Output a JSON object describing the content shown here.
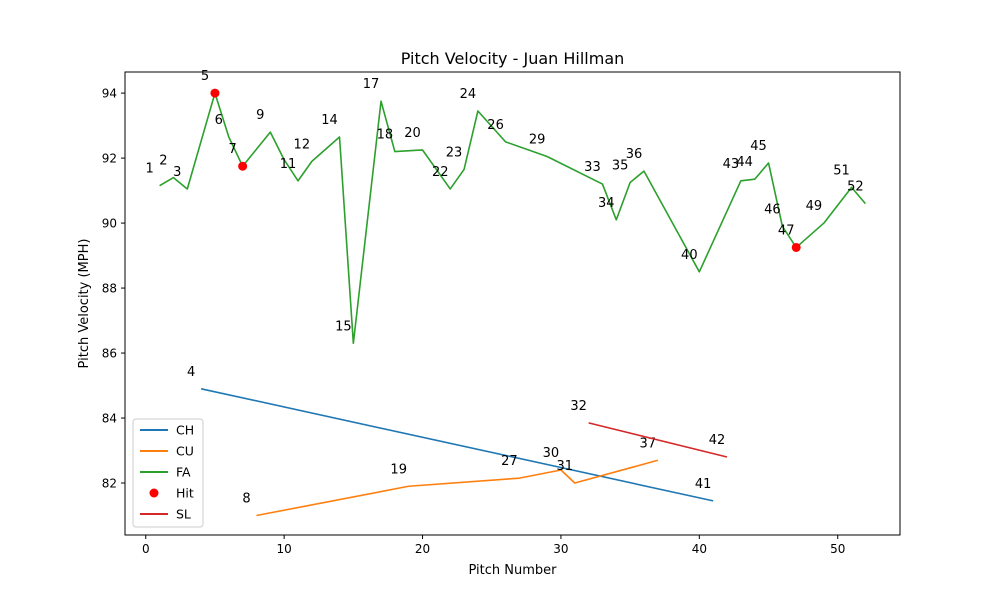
{
  "chart_data": {
    "type": "line",
    "title": "Pitch Velocity - Juan Hillman",
    "xlabel": "Pitch Number",
    "ylabel": "Pitch Velocity (MPH)",
    "xlim": [
      -1.5,
      54.5
    ],
    "ylim": [
      80.4,
      94.65
    ],
    "xticks": [
      0,
      10,
      20,
      30,
      40,
      50
    ],
    "yticks": [
      82,
      84,
      86,
      88,
      90,
      92,
      94
    ],
    "grid": false,
    "legend_position": "lower-left",
    "series": [
      {
        "name": "CH",
        "color": "#1f77b4",
        "points": [
          {
            "x": 4,
            "y": 84.9,
            "label": "4"
          },
          {
            "x": 41,
            "y": 81.45,
            "label": "41"
          }
        ]
      },
      {
        "name": "CU",
        "color": "#ff7f0e",
        "points": [
          {
            "x": 8,
            "y": 81.0,
            "label": "8"
          },
          {
            "x": 19,
            "y": 81.9,
            "label": "19"
          },
          {
            "x": 27,
            "y": 82.15,
            "label": "27"
          },
          {
            "x": 30,
            "y": 82.4,
            "label": "30"
          },
          {
            "x": 31,
            "y": 82.0,
            "label": "31"
          },
          {
            "x": 37,
            "y": 82.7,
            "label": "37"
          }
        ]
      },
      {
        "name": "FA",
        "color": "#2ca02c",
        "points": [
          {
            "x": 1,
            "y": 91.15,
            "label": "1"
          },
          {
            "x": 2,
            "y": 91.4,
            "label": "2"
          },
          {
            "x": 3,
            "y": 91.05,
            "label": "3"
          },
          {
            "x": 5,
            "y": 94.0,
            "label": "5"
          },
          {
            "x": 6,
            "y": 92.65,
            "label": "6"
          },
          {
            "x": 7,
            "y": 91.75,
            "label": "7"
          },
          {
            "x": 9,
            "y": 92.8,
            "label": "9"
          },
          {
            "x": 10,
            "y": 91.95,
            "label": null
          },
          {
            "x": 11,
            "y": 91.3,
            "label": "11"
          },
          {
            "x": 12,
            "y": 91.9,
            "label": "12"
          },
          {
            "x": 14,
            "y": 92.65,
            "label": "14"
          },
          {
            "x": 15,
            "y": 86.3,
            "label": "15"
          },
          {
            "x": 17,
            "y": 93.75,
            "label": "17"
          },
          {
            "x": 18,
            "y": 92.2,
            "label": "18"
          },
          {
            "x": 20,
            "y": 92.25,
            "label": "20"
          },
          {
            "x": 22,
            "y": 91.05,
            "label": "22"
          },
          {
            "x": 23,
            "y": 91.65,
            "label": "23"
          },
          {
            "x": 24,
            "y": 93.45,
            "label": "24"
          },
          {
            "x": 26,
            "y": 92.5,
            "label": "26"
          },
          {
            "x": 29,
            "y": 92.05,
            "label": "29"
          },
          {
            "x": 33,
            "y": 91.2,
            "label": "33"
          },
          {
            "x": 34,
            "y": 90.1,
            "label": "34"
          },
          {
            "x": 35,
            "y": 91.25,
            "label": "35"
          },
          {
            "x": 36,
            "y": 91.6,
            "label": "36"
          },
          {
            "x": 40,
            "y": 88.5,
            "label": "40"
          },
          {
            "x": 43,
            "y": 91.3,
            "label": "43"
          },
          {
            "x": 44,
            "y": 91.35,
            "label": "44"
          },
          {
            "x": 45,
            "y": 91.85,
            "label": "45"
          },
          {
            "x": 46,
            "y": 89.9,
            "label": "46"
          },
          {
            "x": 47,
            "y": 89.25,
            "label": "47"
          },
          {
            "x": 49,
            "y": 90.0,
            "label": "49"
          },
          {
            "x": 51,
            "y": 91.1,
            "label": "51"
          },
          {
            "x": 52,
            "y": 90.6,
            "label": "52"
          }
        ]
      },
      {
        "name": "SL",
        "color": "#d62728",
        "points": [
          {
            "x": 32,
            "y": 83.85,
            "label": "32"
          },
          {
            "x": 42,
            "y": 82.8,
            "label": "42"
          }
        ]
      }
    ],
    "hits": {
      "name": "Hit",
      "color": "#ff0000",
      "points": [
        {
          "x": 5,
          "y": 94.0
        },
        {
          "x": 7,
          "y": 91.75
        },
        {
          "x": 47,
          "y": 89.25
        }
      ]
    },
    "legend": [
      "CH",
      "CU",
      "FA",
      "Hit",
      "SL"
    ]
  }
}
